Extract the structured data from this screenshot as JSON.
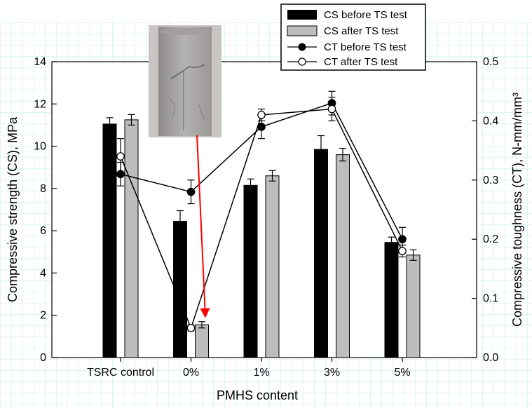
{
  "chart_data": {
    "type": "bar",
    "categories": [
      "TSRC control",
      "0%",
      "1%",
      "3%",
      "5%"
    ],
    "xlabel": "PMHS content",
    "ylabel_left": "Compressive strength (CS), MPa",
    "ylabel_right": "Compressive toughness (CT), N-mm/mm³",
    "ylim_left": [
      0,
      14
    ],
    "ylim_right": [
      0.0,
      0.5
    ],
    "yticks_left": [
      "0",
      "2",
      "4",
      "6",
      "8",
      "10",
      "12",
      "14"
    ],
    "yticks_right": [
      "0.0",
      "0.1",
      "0.2",
      "0.3",
      "0.4",
      "0.5"
    ],
    "bar_series": [
      {
        "name": "CS before TS test",
        "axis": "left",
        "color": "#000000",
        "values": [
          11.05,
          6.45,
          8.15,
          9.85,
          5.45
        ],
        "errors": [
          0.3,
          0.5,
          0.3,
          0.65,
          0.25
        ]
      },
      {
        "name": "CS after TS test",
        "axis": "left",
        "color": "#bdbdbd",
        "values": [
          11.25,
          1.55,
          8.6,
          9.6,
          4.85
        ],
        "errors": [
          0.25,
          0.15,
          0.25,
          0.3,
          0.25
        ]
      }
    ],
    "line_series": [
      {
        "name": "CT before TS test",
        "axis": "right",
        "marker": "filled-circle",
        "values": [
          0.31,
          0.28,
          0.39,
          0.43,
          0.2
        ],
        "errors": [
          0.02,
          0.02,
          0.02,
          0.02,
          0.02
        ]
      },
      {
        "name": "CT after TS test",
        "axis": "right",
        "marker": "open-circle",
        "values": [
          0.34,
          0.05,
          0.41,
          0.42,
          0.18
        ],
        "errors": [
          0.03,
          0.005,
          0.01,
          0.02,
          0.01
        ]
      }
    ],
    "annotation": {
      "kind": "inset-photo-with-red-arrow",
      "arrow_color": "#ff0000",
      "points_to": "0%"
    },
    "grid": true,
    "legend_position": "top-right"
  }
}
